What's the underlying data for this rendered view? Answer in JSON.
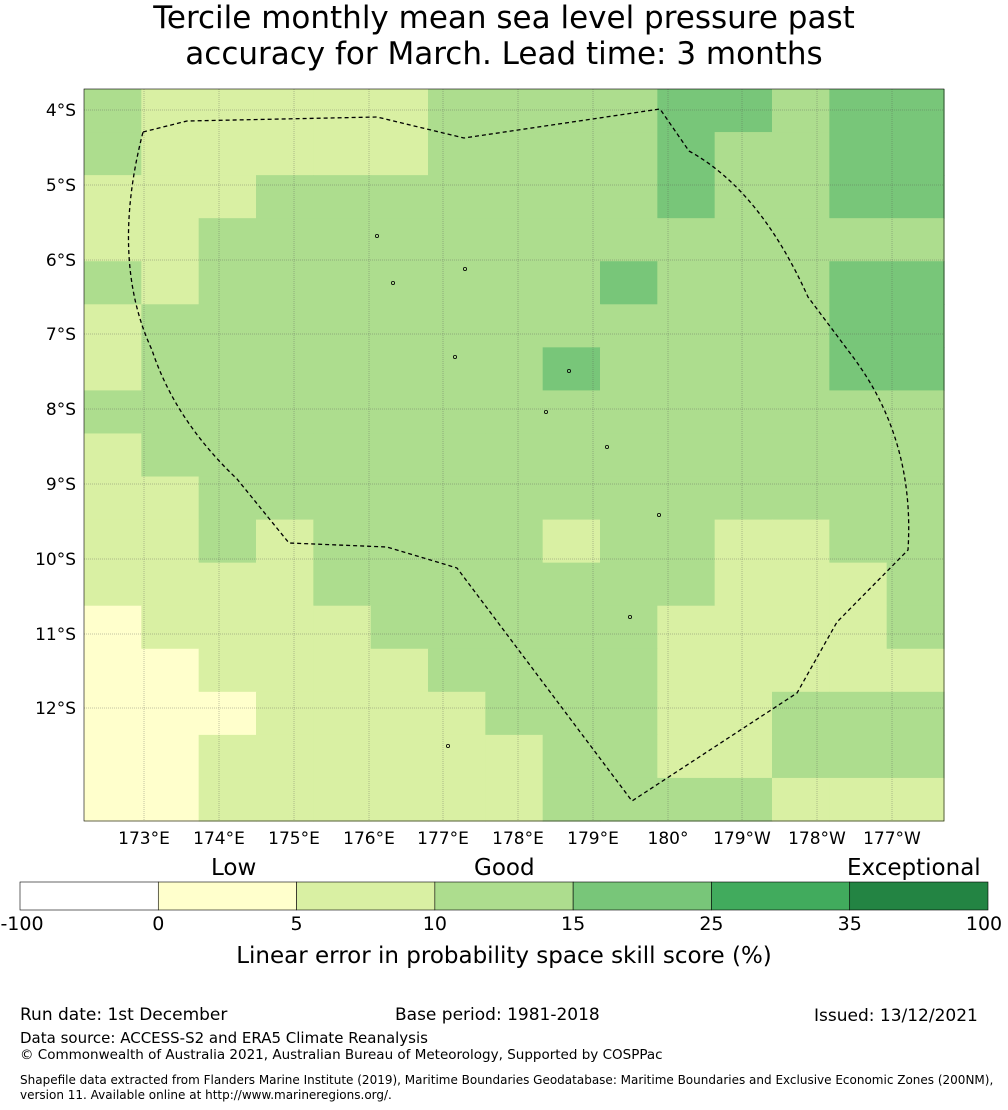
{
  "title_line1": "Tercile monthly mean sea level pressure past",
  "title_line2": "accuracy for March. Lead time: 3 months",
  "map": {
    "lat_labels": [
      "4°S",
      "5°S",
      "6°S",
      "7°S",
      "8°S",
      "9°S",
      "10°S",
      "11°S",
      "12°S"
    ],
    "lon_labels": [
      "173°E",
      "174°E",
      "175°E",
      "176°E",
      "177°E",
      "178°E",
      "179°E",
      "180°",
      "179°W",
      "178°W",
      "177°W"
    ],
    "grid_values": [
      [
        10,
        5,
        5,
        5,
        5,
        5,
        10,
        10,
        10,
        10,
        15,
        15,
        10,
        15,
        15
      ],
      [
        10,
        5,
        5,
        5,
        5,
        5,
        10,
        10,
        10,
        10,
        15,
        10,
        10,
        15,
        15
      ],
      [
        5,
        5,
        5,
        10,
        10,
        10,
        10,
        10,
        10,
        10,
        15,
        10,
        10,
        15,
        15
      ],
      [
        5,
        5,
        10,
        10,
        10,
        10,
        10,
        10,
        10,
        10,
        10,
        10,
        10,
        10,
        10
      ],
      [
        10,
        5,
        10,
        10,
        10,
        10,
        10,
        10,
        10,
        15,
        10,
        10,
        10,
        15,
        15
      ],
      [
        5,
        10,
        10,
        10,
        10,
        10,
        10,
        10,
        10,
        10,
        10,
        10,
        10,
        15,
        15
      ],
      [
        5,
        10,
        10,
        10,
        10,
        10,
        10,
        10,
        15,
        10,
        10,
        10,
        10,
        15,
        15
      ],
      [
        10,
        10,
        10,
        10,
        10,
        10,
        10,
        10,
        10,
        10,
        10,
        10,
        10,
        10,
        10
      ],
      [
        5,
        10,
        10,
        10,
        10,
        10,
        10,
        10,
        10,
        10,
        10,
        10,
        10,
        10,
        10
      ],
      [
        5,
        5,
        10,
        10,
        10,
        10,
        10,
        10,
        10,
        10,
        10,
        10,
        10,
        10,
        10
      ],
      [
        5,
        5,
        10,
        5,
        10,
        10,
        10,
        10,
        5,
        10,
        10,
        5,
        5,
        10,
        10
      ],
      [
        5,
        5,
        5,
        5,
        10,
        10,
        10,
        10,
        10,
        10,
        10,
        5,
        5,
        5,
        10
      ],
      [
        0,
        5,
        5,
        5,
        5,
        10,
        10,
        10,
        10,
        10,
        5,
        5,
        5,
        5,
        10
      ],
      [
        0,
        0,
        5,
        5,
        5,
        5,
        10,
        10,
        10,
        10,
        5,
        5,
        5,
        5,
        5
      ],
      [
        0,
        0,
        0,
        5,
        5,
        5,
        5,
        10,
        10,
        10,
        5,
        5,
        10,
        10,
        10
      ],
      [
        0,
        0,
        5,
        5,
        5,
        5,
        5,
        5,
        10,
        10,
        5,
        5,
        10,
        10,
        10
      ],
      [
        0,
        0,
        5,
        5,
        5,
        5,
        5,
        5,
        10,
        10,
        10,
        10,
        5,
        5,
        5
      ]
    ]
  },
  "colorbar": {
    "category_labels": [
      "Low",
      "Good",
      "Exceptional"
    ],
    "ticks": [
      "-100",
      "0",
      "5",
      "10",
      "15",
      "25",
      "35",
      "100"
    ],
    "colors": [
      "#ffffff",
      "#ffffcc",
      "#d9f0a3",
      "#addd8e",
      "#78c679",
      "#41ab5d",
      "#238443"
    ],
    "label": "Linear error in probability space skill score (%)"
  },
  "footer": {
    "run_date": "Run date: 1st December",
    "base_period": "Base period: 1981-2018",
    "issued": "Issued: 13/12/2021",
    "data_source": "Data source: ACCESS-S2 and ERA5 Climate Reanalysis",
    "copyright": "© Commonwealth of Australia 2021, Australian Bureau of Meteorology, Supported by COSPPac",
    "shapefile_line1": "Shapefile data extracted from Flanders Marine Institute (2019), Maritime Boundaries Geodatabase: Maritime Boundaries and Exclusive Economic Zones (200NM),",
    "shapefile_line2": "version 11. Available online at http://www.marineregions.org/."
  }
}
